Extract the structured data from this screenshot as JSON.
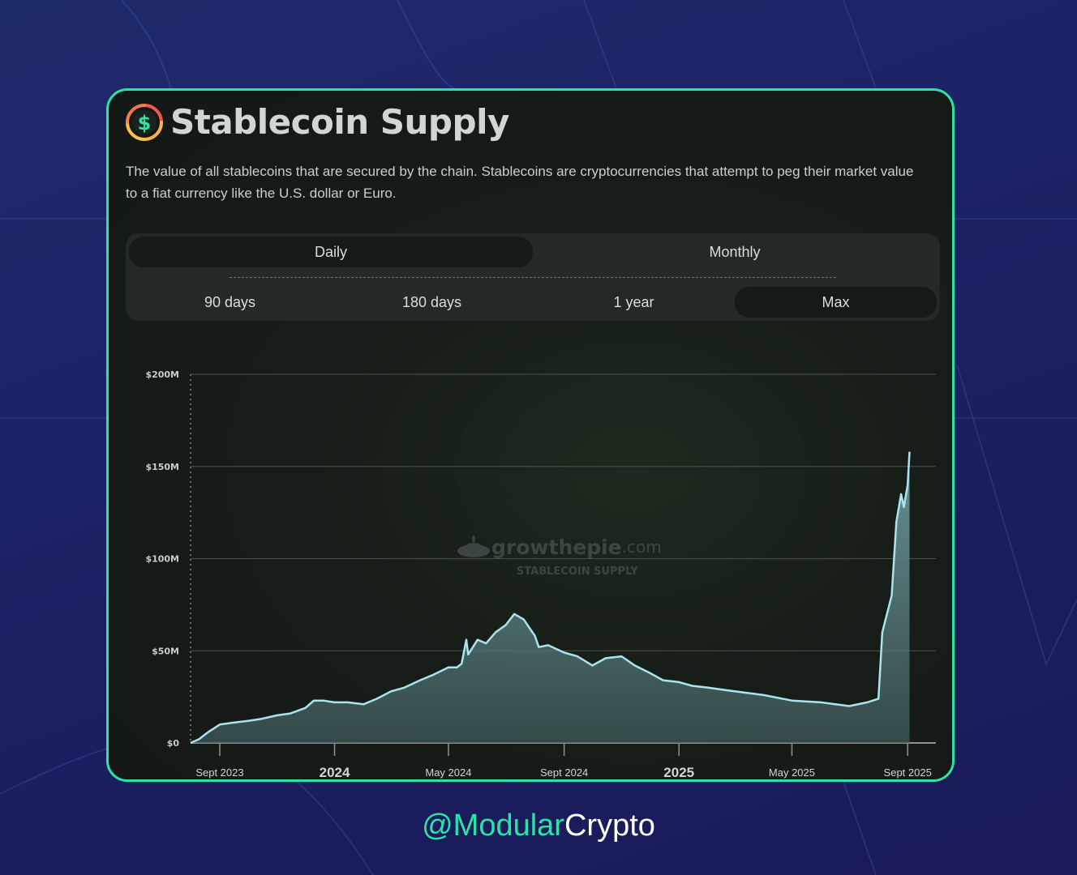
{
  "card": {
    "title": "Stablecoin Supply",
    "description": "The value of all stablecoins that are secured by the chain. Stablecoins are cryptocurrencies that attempt to peg their market value to a fiat currency like the U.S. dollar or Euro.",
    "logo_icon": "dollar-circle-icon"
  },
  "controls": {
    "granularity": [
      {
        "label": "Daily",
        "active": true
      },
      {
        "label": "Monthly",
        "active": false
      }
    ],
    "ranges": [
      {
        "label": "90 days",
        "active": false
      },
      {
        "label": "180 days",
        "active": false
      },
      {
        "label": "1 year",
        "active": false
      },
      {
        "label": "Max",
        "active": true
      }
    ]
  },
  "watermark": {
    "brand": "growthepie",
    "suffix": ".com",
    "subtitle": "STABLECOIN SUPPLY"
  },
  "footer": {
    "handle_accent": "@Modular",
    "handle_rest": "Crypto"
  },
  "colors": {
    "accent": "#2be3a4",
    "line": "#a9e4ef",
    "area_top": "#6f9b9e",
    "area_bottom": "#3f5a5a"
  },
  "chart_data": {
    "type": "area",
    "title": "",
    "xlabel": "",
    "ylabel": "",
    "ylim": [
      0,
      200
    ],
    "unit": "USD millions",
    "grid": true,
    "legend": "none",
    "y_ticks": [
      {
        "value": 0,
        "label": "$0"
      },
      {
        "value": 50,
        "label": "$50M"
      },
      {
        "value": 100,
        "label": "$100M"
      },
      {
        "value": 150,
        "label": "$150M"
      },
      {
        "value": 200,
        "label": "$200M"
      }
    ],
    "x_range": [
      "2023-08-01",
      "2025-10-01"
    ],
    "x_ticks": [
      {
        "date": "2023-09-01",
        "label": "Sept 2023",
        "major": false
      },
      {
        "date": "2024-01-01",
        "label": "2024",
        "major": true
      },
      {
        "date": "2024-05-01",
        "label": "May 2024",
        "major": false
      },
      {
        "date": "2024-09-01",
        "label": "Sept 2024",
        "major": false
      },
      {
        "date": "2025-01-01",
        "label": "2025",
        "major": true
      },
      {
        "date": "2025-05-01",
        "label": "May 2025",
        "major": false
      },
      {
        "date": "2025-09-01",
        "label": "Sept 2025",
        "major": false
      }
    ],
    "series": [
      {
        "points": [
          [
            "2023-08-01",
            0
          ],
          [
            "2023-08-10",
            2
          ],
          [
            "2023-08-20",
            6
          ],
          [
            "2023-09-01",
            10
          ],
          [
            "2023-09-15",
            11
          ],
          [
            "2023-10-01",
            12
          ],
          [
            "2023-10-15",
            13
          ],
          [
            "2023-11-01",
            15
          ],
          [
            "2023-11-15",
            16
          ],
          [
            "2023-12-01",
            19
          ],
          [
            "2023-12-10",
            23
          ],
          [
            "2023-12-20",
            23
          ],
          [
            "2024-01-01",
            22
          ],
          [
            "2024-01-15",
            22
          ],
          [
            "2024-02-01",
            21
          ],
          [
            "2024-02-15",
            24
          ],
          [
            "2024-03-01",
            28
          ],
          [
            "2024-03-15",
            30
          ],
          [
            "2024-04-01",
            34
          ],
          [
            "2024-04-15",
            37
          ],
          [
            "2024-05-01",
            41
          ],
          [
            "2024-05-10",
            41
          ],
          [
            "2024-05-15",
            43
          ],
          [
            "2024-05-20",
            56
          ],
          [
            "2024-05-22",
            48
          ],
          [
            "2024-06-01",
            56
          ],
          [
            "2024-06-10",
            54
          ],
          [
            "2024-06-20",
            60
          ],
          [
            "2024-07-01",
            64
          ],
          [
            "2024-07-10",
            70
          ],
          [
            "2024-07-20",
            67
          ],
          [
            "2024-08-01",
            58
          ],
          [
            "2024-08-05",
            52
          ],
          [
            "2024-08-15",
            53
          ],
          [
            "2024-09-01",
            49
          ],
          [
            "2024-09-15",
            47
          ],
          [
            "2024-10-01",
            42
          ],
          [
            "2024-10-15",
            46
          ],
          [
            "2024-11-01",
            47
          ],
          [
            "2024-11-15",
            42
          ],
          [
            "2024-12-01",
            38
          ],
          [
            "2024-12-15",
            34
          ],
          [
            "2025-01-01",
            33
          ],
          [
            "2025-01-15",
            31
          ],
          [
            "2025-02-01",
            30
          ],
          [
            "2025-02-15",
            29
          ],
          [
            "2025-03-01",
            28
          ],
          [
            "2025-04-01",
            26
          ],
          [
            "2025-05-01",
            23
          ],
          [
            "2025-06-01",
            22
          ],
          [
            "2025-07-01",
            20
          ],
          [
            "2025-07-20",
            22
          ],
          [
            "2025-08-01",
            24
          ],
          [
            "2025-08-05",
            60
          ],
          [
            "2025-08-10",
            70
          ],
          [
            "2025-08-15",
            80
          ],
          [
            "2025-08-20",
            120
          ],
          [
            "2025-08-25",
            135
          ],
          [
            "2025-08-28",
            128
          ],
          [
            "2025-09-01",
            140
          ],
          [
            "2025-09-03",
            158
          ]
        ]
      }
    ]
  }
}
